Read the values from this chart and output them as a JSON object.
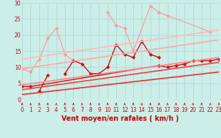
{
  "background_color": "#cceee8",
  "grid_color": "#aad8d2",
  "x_label": "Vent moyen/en rafales ( km/h )",
  "x_min": 0,
  "x_max": 23,
  "y_min": 0,
  "y_max": 30,
  "y_ticks": [
    0,
    5,
    10,
    15,
    20,
    25,
    30
  ],
  "x_ticks": [
    0,
    1,
    2,
    3,
    4,
    5,
    6,
    7,
    8,
    9,
    10,
    11,
    12,
    13,
    14,
    15,
    16,
    17,
    18,
    19,
    20,
    21,
    22,
    23
  ],
  "lines": [
    {
      "x": [
        0,
        1,
        2,
        3,
        4,
        5,
        6
      ],
      "y": [
        9.5,
        8.5,
        12.5,
        19,
        22,
        14,
        12
      ],
      "color": "#ff9999",
      "marker": "D",
      "markersize": 2.5,
      "linewidth": 0.9
    },
    {
      "x": [
        10,
        11,
        12,
        13,
        15,
        16,
        17,
        22
      ],
      "y": [
        27,
        23,
        22,
        15,
        29,
        27,
        26,
        21
      ],
      "color": "#ff9999",
      "marker": "D",
      "markersize": 2.5,
      "linewidth": 0.9
    },
    {
      "x": [
        5,
        6,
        7,
        8,
        9,
        10,
        11,
        12,
        13,
        14,
        15,
        16
      ],
      "y": [
        8,
        12,
        11,
        8,
        8,
        10,
        17,
        14,
        13,
        18,
        14,
        13
      ],
      "color": "#dd0000",
      "marker": "D",
      "markersize": 2.5,
      "linewidth": 1.0
    },
    {
      "x": [
        2,
        3
      ],
      "y": [
        2.5,
        7.5
      ],
      "color": "#dd0000",
      "marker": "D",
      "markersize": 2.5,
      "linewidth": 1.0
    },
    {
      "x": [
        0,
        1,
        16,
        17,
        18,
        19,
        20,
        21,
        22,
        23
      ],
      "y": [
        4,
        4,
        10.5,
        10,
        10.5,
        11,
        12,
        12,
        12,
        12.5
      ],
      "color": "#dd0000",
      "marker": "D",
      "markersize": 2.5,
      "linewidth": 1.0
    },
    {
      "x": [
        0,
        23
      ],
      "y": [
        1.5,
        8.5
      ],
      "color": "#ee3333",
      "marker": null,
      "linewidth": 1.3
    },
    {
      "x": [
        0,
        23
      ],
      "y": [
        3.0,
        11.5
      ],
      "color": "#ee4444",
      "marker": null,
      "linewidth": 1.3
    },
    {
      "x": [
        0,
        23
      ],
      "y": [
        4.5,
        13.0
      ],
      "color": "#ff8888",
      "marker": null,
      "linewidth": 1.3
    },
    {
      "x": [
        0,
        23
      ],
      "y": [
        9.5,
        18.5
      ],
      "color": "#ffaaaa",
      "marker": null,
      "linewidth": 1.3
    },
    {
      "x": [
        0,
        23
      ],
      "y": [
        12.5,
        21.5
      ],
      "color": "#ffbbbb",
      "marker": null,
      "linewidth": 1.3
    }
  ],
  "arrow_color": "#cc0000",
  "label_fontsize": 7,
  "tick_fontsize": 5.5
}
